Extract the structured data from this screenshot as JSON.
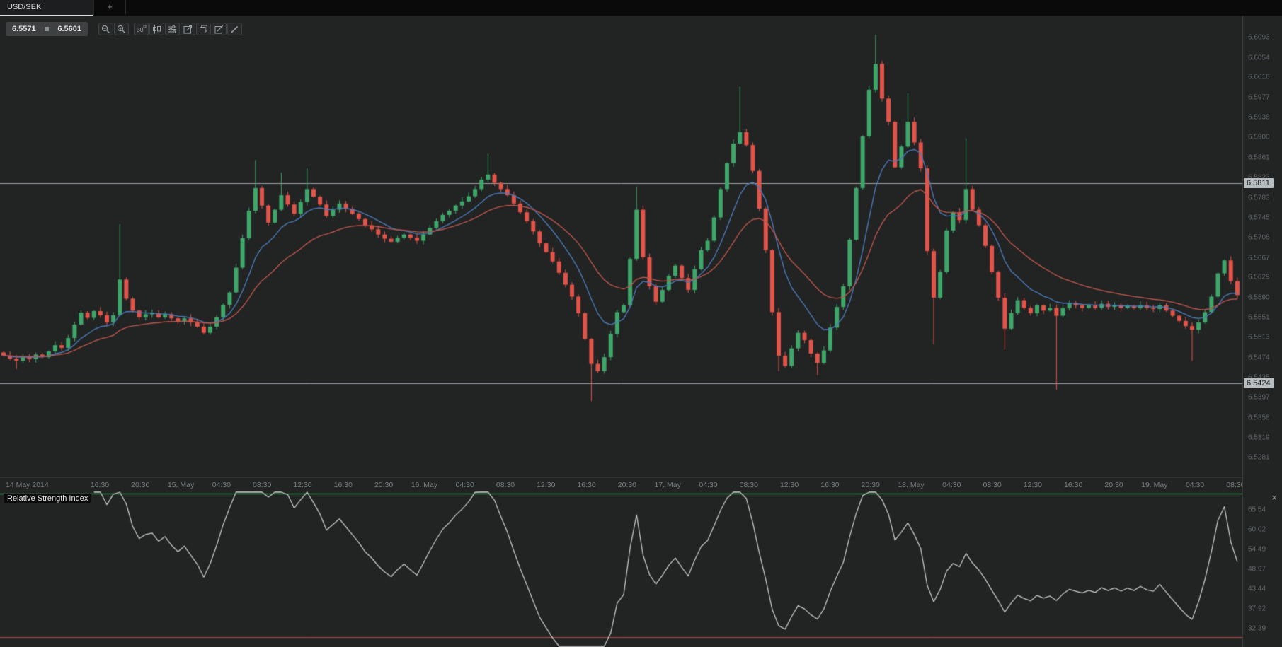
{
  "window": {
    "tab_title": "USD/SEK",
    "add_tab_label": "+"
  },
  "toolbar": {
    "bid": "6.5571",
    "ask": "6.5601",
    "buttons": [
      {
        "name": "zoom-out"
      },
      {
        "name": "zoom-in"
      },
      {
        "name": "timeframe-30",
        "label": "30"
      },
      {
        "name": "chart-type-candlestick"
      },
      {
        "name": "indicators"
      },
      {
        "name": "expand"
      },
      {
        "name": "duplicate"
      },
      {
        "name": "edit"
      },
      {
        "name": "draw"
      }
    ]
  },
  "price_axis": {
    "labels": [
      "6.6093",
      "6.6054",
      "6.6016",
      "6.5977",
      "6.5938",
      "6.5900",
      "6.5861",
      "6.5823",
      "6.5783",
      "6.5745",
      "6.5706",
      "6.5667",
      "6.5629",
      "6.5590",
      "6.5551",
      "6.5513",
      "6.5474",
      "6.5435",
      "6.5397",
      "6.5358",
      "6.5319",
      "6.5281"
    ],
    "highlighted": [
      "6.5811",
      "6.5424"
    ]
  },
  "time_axis": {
    "labels": [
      "14 May 2014",
      "16:30",
      "20:30",
      "15. May",
      "04:30",
      "08:30",
      "12:30",
      "16:30",
      "20:30",
      "16. May",
      "04:30",
      "08:30",
      "12:30",
      "16:30",
      "20:30",
      "17. May",
      "04:30",
      "08:30",
      "12:30",
      "16:30",
      "20:30",
      "18. May",
      "04:30",
      "08:30",
      "12:30",
      "16:30",
      "20:30",
      "19. May",
      "04:30",
      "08:30"
    ]
  },
  "rsi_panel": {
    "title": "Relative Strength Index",
    "close_label": "×",
    "axis_labels": [
      "65.54",
      "60.02",
      "54.49",
      "48.97",
      "43.44",
      "37.92",
      "32.39"
    ],
    "overbought_level": 70,
    "oversold_level": 30
  },
  "colors": {
    "background": "#222323",
    "tabbar_bg": "#0a0a0b",
    "candle_up": "#3fa66a",
    "candle_down": "#e0544a",
    "ma_fast": "#4a7ab8",
    "ma_slow": "#b9574c",
    "price_line": "#9ba1a4",
    "axis_text": "#62676a",
    "rsi_line": "#c6c8c9",
    "rsi_overbought": "#2e7d44",
    "rsi_oversold": "#b94a3c",
    "highlight_label_bg": "#b8bdc0"
  },
  "chart_data": {
    "type": "candlestick",
    "symbol": "USD/SEK",
    "interval": "30 minutes",
    "x_range": [
      "14 May 2014 14:00",
      "19 May 2014 08:30"
    ],
    "price_range_visible": [
      6.5245,
      6.6135
    ],
    "marked_prices": [
      6.5811,
      6.5424
    ],
    "price_encoding": "price = 6.0 + v/10000",
    "closes": [
      5478,
      5472,
      5468,
      5476,
      5471,
      5480,
      5475,
      5486,
      5498,
      5493,
      5512,
      5538,
      5561,
      5551,
      5564,
      5556,
      5542,
      5556,
      5625,
      5588,
      5565,
      5552,
      5558,
      5560,
      5552,
      5558,
      5550,
      5544,
      5550,
      5542,
      5534,
      5522,
      5534,
      5552,
      5576,
      5600,
      5648,
      5705,
      5758,
      5802,
      5768,
      5735,
      5760,
      5788,
      5770,
      5752,
      5775,
      5800,
      5785,
      5770,
      5748,
      5760,
      5772,
      5762,
      5752,
      5742,
      5730,
      5722,
      5712,
      5704,
      5698,
      5706,
      5712,
      5706,
      5700,
      5712,
      5725,
      5738,
      5750,
      5758,
      5768,
      5776,
      5786,
      5800,
      5818,
      5828,
      5812,
      5800,
      5788,
      5772,
      5755,
      5738,
      5718,
      5695,
      5678,
      5660,
      5638,
      5615,
      5592,
      5560,
      5510,
      5462,
      5448,
      5475,
      5520,
      5562,
      5575,
      5665,
      5760,
      5668,
      5612,
      5582,
      5605,
      5632,
      5652,
      5628,
      5605,
      5645,
      5682,
      5700,
      5745,
      5800,
      5850,
      5888,
      5910,
      5885,
      5835,
      5762,
      5682,
      5562,
      5478,
      5458,
      5492,
      5522,
      5508,
      5482,
      5464,
      5488,
      5532,
      5572,
      5612,
      5702,
      5802,
      5902,
      5992,
      6042,
      5975,
      5930,
      5842,
      5882,
      5930,
      5890,
      5840,
      5680,
      5590,
      5640,
      5720,
      5755,
      5740,
      5800,
      5760,
      5730,
      5690,
      5640,
      5590,
      5530,
      5560,
      5585,
      5570,
      5560,
      5575,
      5565,
      5570,
      5555,
      5570,
      5580,
      5575,
      5570,
      5575,
      5570,
      5578,
      5572,
      5576,
      5570,
      5574,
      5570,
      5575,
      5570,
      5568,
      5575,
      5565,
      5555,
      5545,
      5535,
      5528,
      5542,
      5562,
      5592,
      5637,
      5662,
      5622,
      5595
    ],
    "wick_overrides": {
      "2": {
        "low": 5452
      },
      "18": {
        "high": 5732
      },
      "39": {
        "high": 5856
      },
      "43": {
        "high": 5832
      },
      "47": {
        "high": 5840
      },
      "75": {
        "high": 5868
      },
      "91": {
        "low": 5390
      },
      "98": {
        "high": 5805
      },
      "114": {
        "high": 5998
      },
      "120": {
        "low": 5448
      },
      "126": {
        "low": 5440
      },
      "135": {
        "high": 6098
      },
      "140": {
        "high": 5985
      },
      "144": {
        "low": 5500
      },
      "149": {
        "high": 5898
      },
      "155": {
        "low": 5489
      },
      "163": {
        "low": 5412
      },
      "184": {
        "low": 5468
      }
    },
    "overlays": [
      {
        "name": "moving-average-fast",
        "period": 9,
        "color": "#4a7ab8"
      },
      {
        "name": "moving-average-slow",
        "period": 21,
        "color": "#b9574c"
      }
    ],
    "indicator": {
      "name": "Relative Strength Index",
      "period": 14,
      "levels": [
        70,
        30
      ]
    }
  }
}
